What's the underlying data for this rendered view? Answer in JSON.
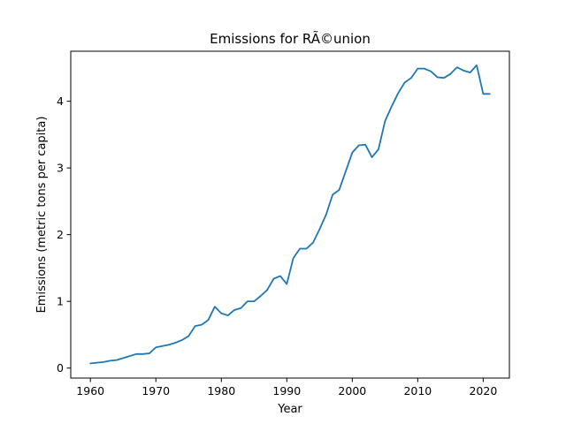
{
  "chart_data": {
    "type": "line",
    "title": "Emissions for RÃ©union",
    "xlabel": "Year",
    "ylabel": "Emissions (metric tons per capita)",
    "xlim": [
      1957,
      2024
    ],
    "ylim": [
      -0.15,
      4.75
    ],
    "xticks": [
      1960,
      1970,
      1980,
      1990,
      2000,
      2010,
      2020
    ],
    "yticks": [
      0,
      1,
      2,
      3,
      4
    ],
    "grid": false,
    "color": "#1f77b4",
    "series": [
      {
        "x": [
          1960,
          1961,
          1962,
          1963,
          1964,
          1965,
          1966,
          1967,
          1968,
          1969,
          1970,
          1971,
          1972,
          1973,
          1974,
          1975,
          1976,
          1977,
          1978,
          1979,
          1980,
          1981,
          1982,
          1983,
          1984,
          1985,
          1986,
          1987,
          1988,
          1989,
          1990,
          1991,
          1992,
          1993,
          1994,
          1995,
          1996,
          1997,
          1998,
          1999,
          2000,
          2001,
          2002,
          2003,
          2004,
          2005,
          2006,
          2007,
          2008,
          2009,
          2010,
          2011,
          2012,
          2013,
          2014,
          2015,
          2016,
          2017,
          2018,
          2019,
          2020,
          2021
        ],
        "y": [
          0.07,
          0.08,
          0.09,
          0.11,
          0.12,
          0.15,
          0.18,
          0.21,
          0.21,
          0.22,
          0.31,
          0.33,
          0.35,
          0.38,
          0.42,
          0.48,
          0.63,
          0.65,
          0.72,
          0.92,
          0.82,
          0.79,
          0.87,
          0.9,
          1.0,
          1.0,
          1.08,
          1.17,
          1.34,
          1.38,
          1.26,
          1.65,
          1.79,
          1.79,
          1.88,
          2.08,
          2.3,
          2.6,
          2.67,
          2.95,
          3.23,
          3.34,
          3.35,
          3.16,
          3.28,
          3.7,
          3.92,
          4.12,
          4.28,
          4.35,
          4.49,
          4.49,
          4.45,
          4.36,
          4.35,
          4.41,
          4.51,
          4.46,
          4.43,
          4.54,
          4.11,
          4.11
        ]
      }
    ]
  }
}
